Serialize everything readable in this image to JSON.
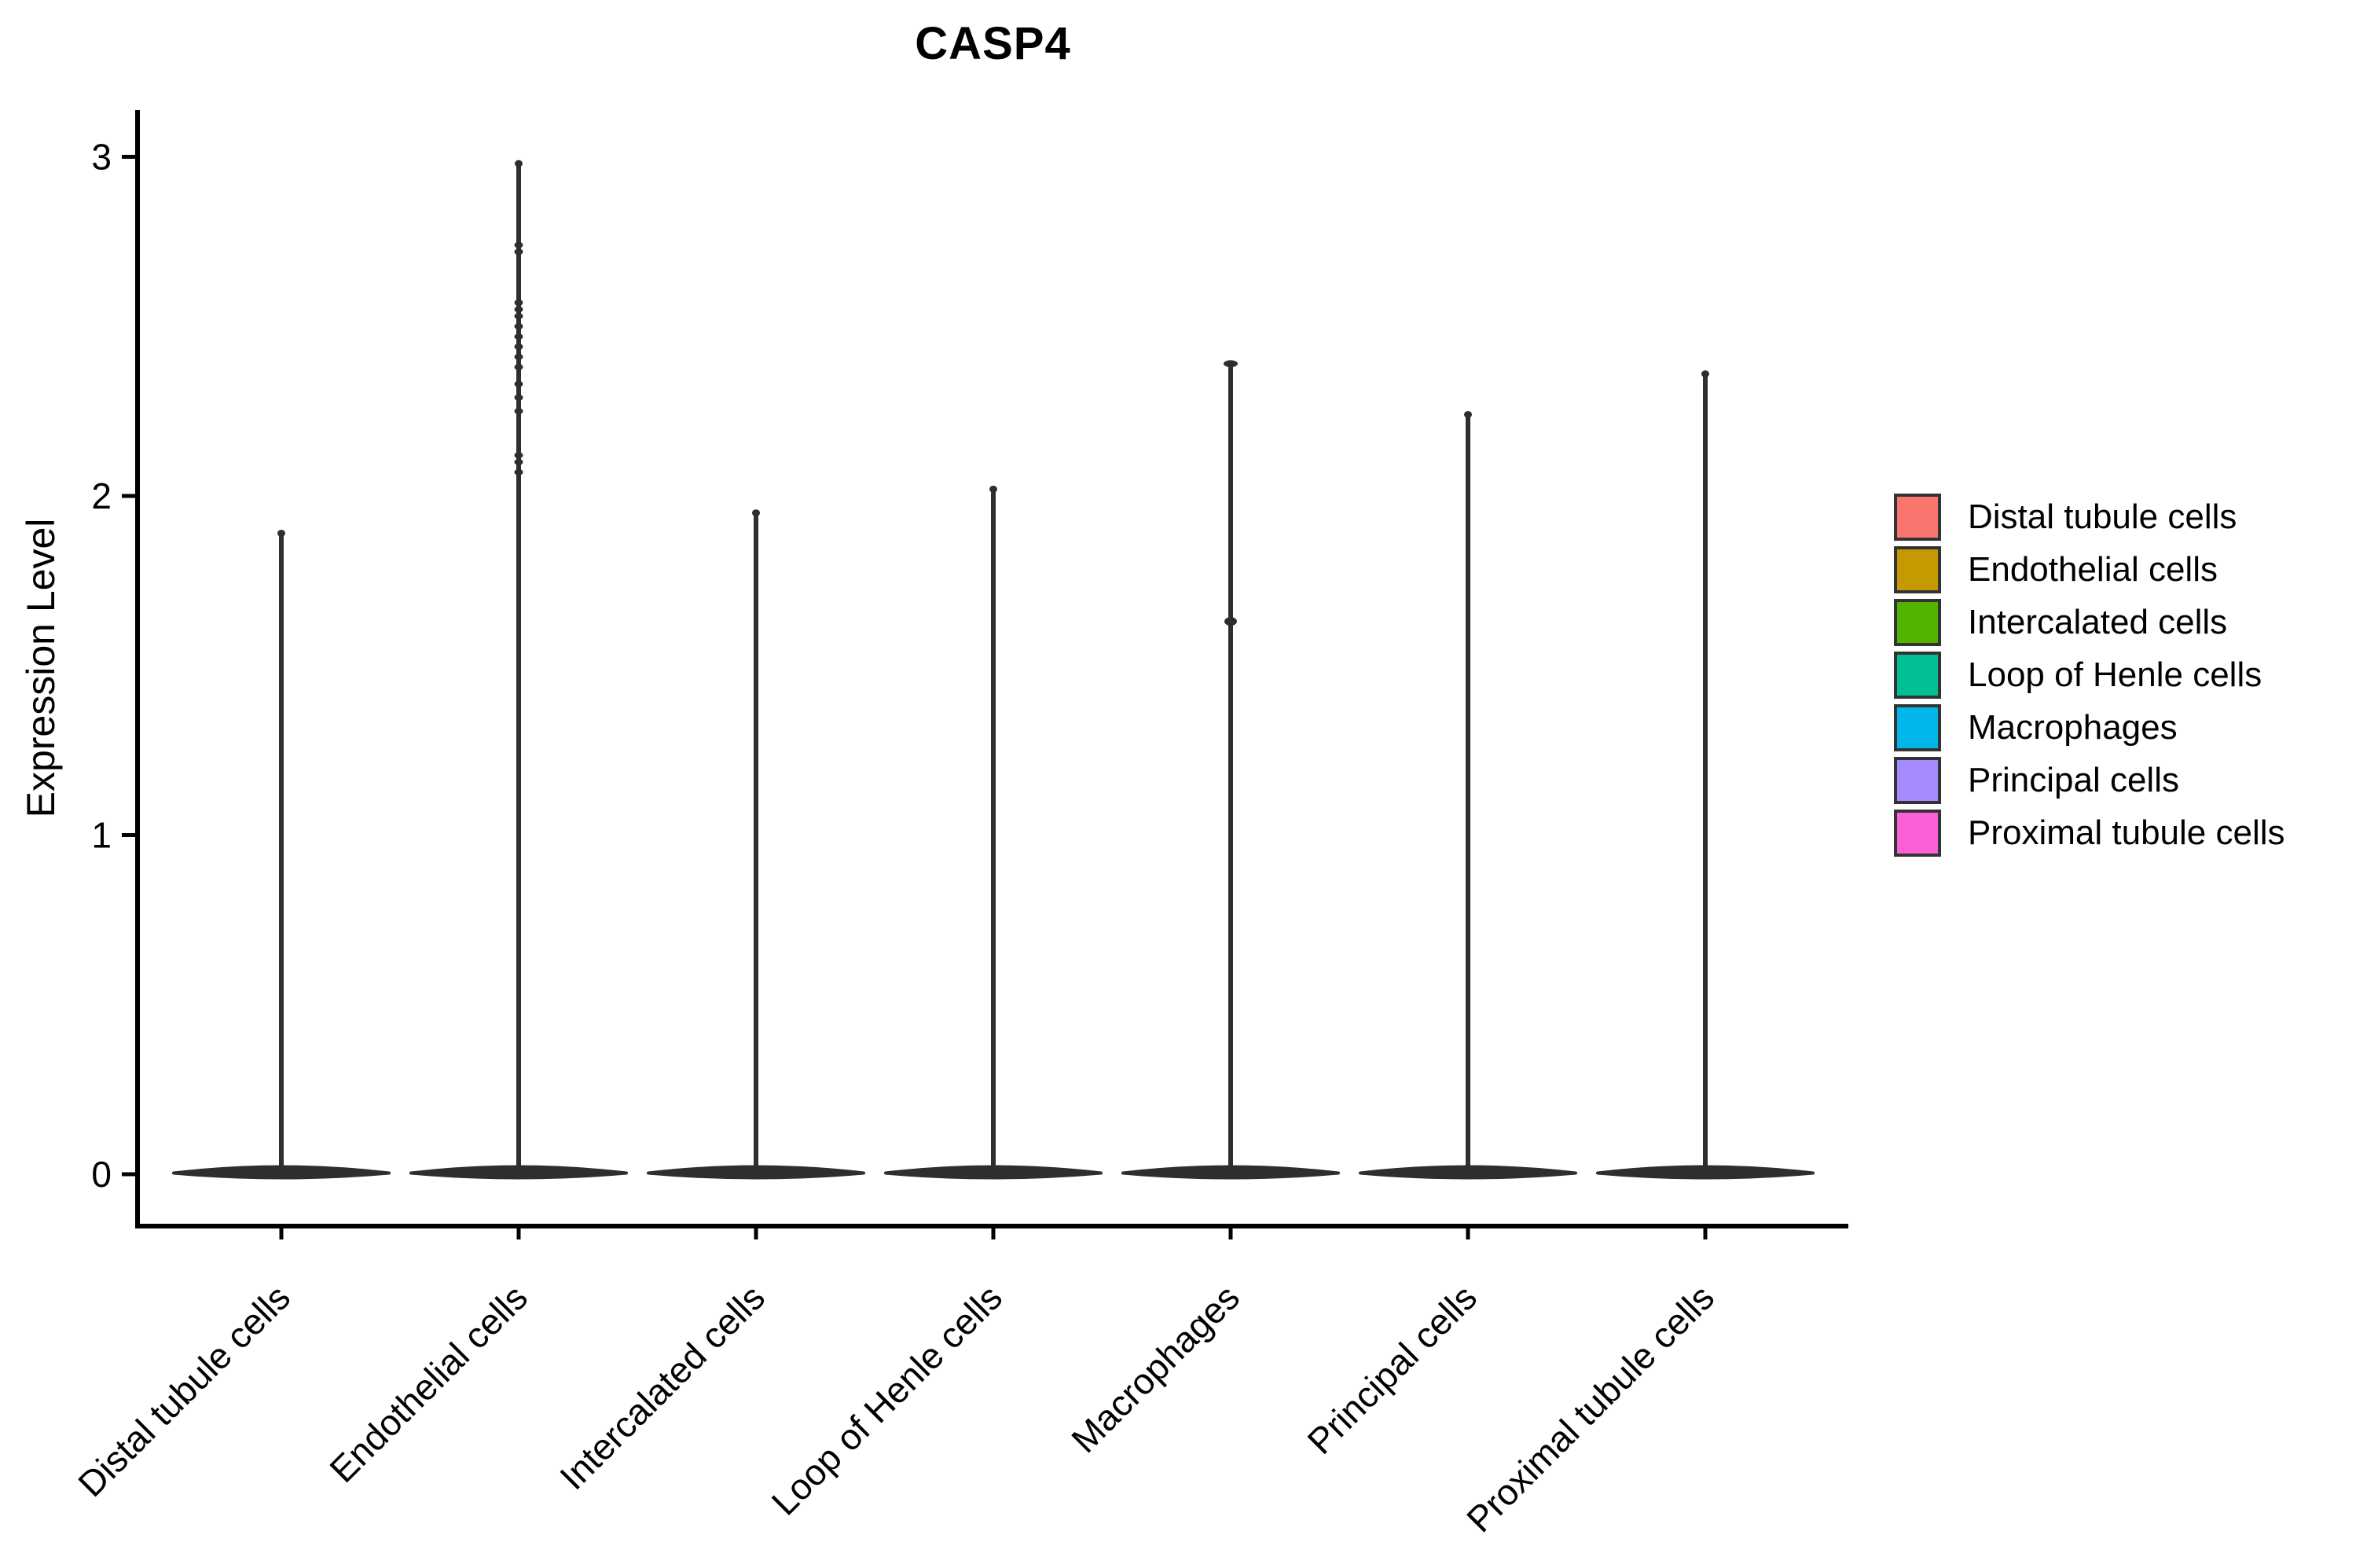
{
  "chart_data": {
    "type": "violin",
    "title": "CASP4",
    "xlabel": "",
    "ylabel": "Expression Level",
    "yticks": [
      0,
      1,
      2,
      3
    ],
    "ylim": [
      -0.16,
      3.14
    ],
    "grid": false,
    "legend_position": "right",
    "outline_color": "#2e2e2e",
    "axis_color": "#000000",
    "categories": [
      "Distal tubule cells",
      "Endothelial cells",
      "Intercalated cells",
      "Loop of Henle cells",
      "Macrophages",
      "Principal cells",
      "Proximal tubule cells"
    ],
    "series": [
      {
        "name": "Distal tubule cells",
        "color": "#F8766D",
        "body_center": 0.0,
        "max": 1.89,
        "points": []
      },
      {
        "name": "Endothelial cells",
        "color": "#C49A00",
        "body_center": 0.0,
        "max": 2.98,
        "points": [
          2.74,
          2.72,
          2.57,
          2.55,
          2.53,
          2.5,
          2.47,
          2.44,
          2.41,
          2.38,
          2.33,
          2.29,
          2.25,
          2.12,
          2.1,
          2.07
        ]
      },
      {
        "name": "Intercalated cells",
        "color": "#53B400",
        "body_center": 0.0,
        "max": 1.95,
        "points": []
      },
      {
        "name": "Loop of Henle cells",
        "color": "#00C094",
        "body_center": 0.0,
        "max": 2.02,
        "points": []
      },
      {
        "name": "Macrophages",
        "color": "#00B6EB",
        "body_center": 0.0,
        "max": 2.39,
        "points": [
          1.63
        ]
      },
      {
        "name": "Principal cells",
        "color": "#A58AFF",
        "body_center": 0.0,
        "max": 2.24,
        "points": []
      },
      {
        "name": "Proximal tubule cells",
        "color": "#FB61D7",
        "body_center": 0.0,
        "max": 2.36,
        "points": []
      }
    ],
    "legend_entries": [
      {
        "label": "Distal tubule cells",
        "color": "#F8766D"
      },
      {
        "label": "Endothelial cells",
        "color": "#C49A00"
      },
      {
        "label": "Intercalated cells",
        "color": "#53B400"
      },
      {
        "label": "Loop of Henle cells",
        "color": "#00C094"
      },
      {
        "label": "Macrophages",
        "color": "#00B6EB"
      },
      {
        "label": "Principal cells",
        "color": "#A58AFF"
      },
      {
        "label": "Proximal tubule cells",
        "color": "#FB61D7"
      }
    ]
  }
}
